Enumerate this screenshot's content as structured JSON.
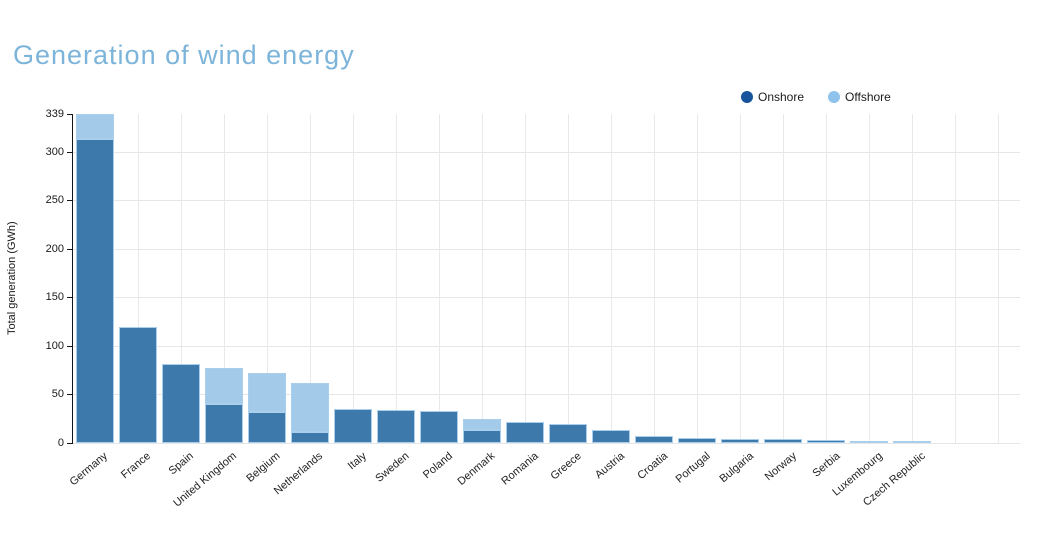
{
  "page": {
    "background": "#ffffff"
  },
  "chart_data": {
    "type": "bar",
    "stacked": true,
    "title": "Generation of wind energy",
    "title_color": "#7cb4da",
    "ylabel": "Total generation (GWh)",
    "xlabel": "",
    "ylim": [
      0,
      339
    ],
    "yticks": [
      0,
      50,
      100,
      150,
      200,
      250,
      300,
      339
    ],
    "grid": true,
    "legend_position": "top-right",
    "background": "#ffffff",
    "categories": [
      "Germany",
      "France",
      "Spain",
      "United Kingdom",
      "Belgium",
      "Netherlands",
      "Italy",
      "Sweden",
      "Poland",
      "Denmark",
      "Romania",
      "Greece",
      "Austria",
      "Croatia",
      "Portugal",
      "Bulgaria",
      "Norway",
      "Serbia",
      "Luxembourg",
      "Czech Republic"
    ],
    "series": [
      {
        "name": "Onshore",
        "bar_color": "#3d79aa",
        "legend_color": "#17549b",
        "values": [
          313,
          120,
          81,
          40,
          32,
          11,
          35,
          34,
          33,
          13,
          22,
          20,
          13,
          7,
          5,
          4.5,
          4,
          3,
          2.5,
          2.5
        ]
      },
      {
        "name": "Offshore",
        "bar_color": "#a3cbe9",
        "legend_color": "#8fc3ec",
        "values": [
          26,
          0,
          0,
          37,
          40,
          51,
          0,
          0,
          0,
          12,
          0,
          0,
          0,
          0,
          0,
          0,
          0,
          0,
          0,
          0
        ]
      }
    ]
  }
}
